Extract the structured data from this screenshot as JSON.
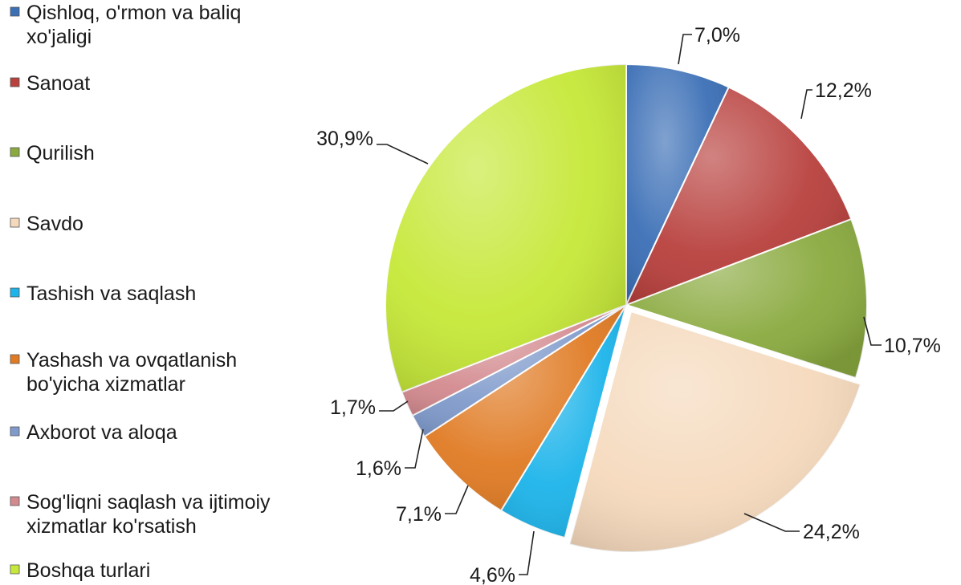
{
  "chart_data": {
    "type": "pie",
    "legend_position": "left",
    "start_angle_deg": 0,
    "direction": "clockwise",
    "slices": [
      {
        "label_lines": [
          "Qishloq, o'rmon va baliq",
          "xo'jaligi"
        ],
        "value": 7.0,
        "display": "7,0%",
        "color": "#3B6FB6"
      },
      {
        "label_lines": [
          "Sanoat"
        ],
        "value": 12.2,
        "display": "12,2%",
        "color": "#B8403D"
      },
      {
        "label_lines": [
          "Qurilish"
        ],
        "value": 10.7,
        "display": "10,7%",
        "color": "#8AAA3F"
      },
      {
        "label_lines": [
          "Savdo"
        ],
        "value": 24.2,
        "display": "24,2%",
        "color": "#F5D9BC"
      },
      {
        "label_lines": [
          "Tashish va saqlash"
        ],
        "value": 4.6,
        "display": "4,6%",
        "color": "#1DB4EA"
      },
      {
        "label_lines": [
          "Yashash va ovqatlanish",
          "bo'yicha xizmatlar"
        ],
        "value": 7.1,
        "display": "7,1%",
        "color": "#E07B24"
      },
      {
        "label_lines": [
          "Axborot va aloqa"
        ],
        "value": 1.6,
        "display": "1,6%",
        "color": "#7F9ACB"
      },
      {
        "label_lines": [
          "Sog'liqni saqlash va ijtimoiy",
          "xizmatlar ko'rsatish"
        ],
        "value": 1.7,
        "display": "1,7%",
        "color": "#D38A8F"
      },
      {
        "label_lines": [
          "Boshqa turlari"
        ],
        "value": 30.9,
        "display": "30,9%",
        "color": "#C6E838"
      }
    ]
  }
}
